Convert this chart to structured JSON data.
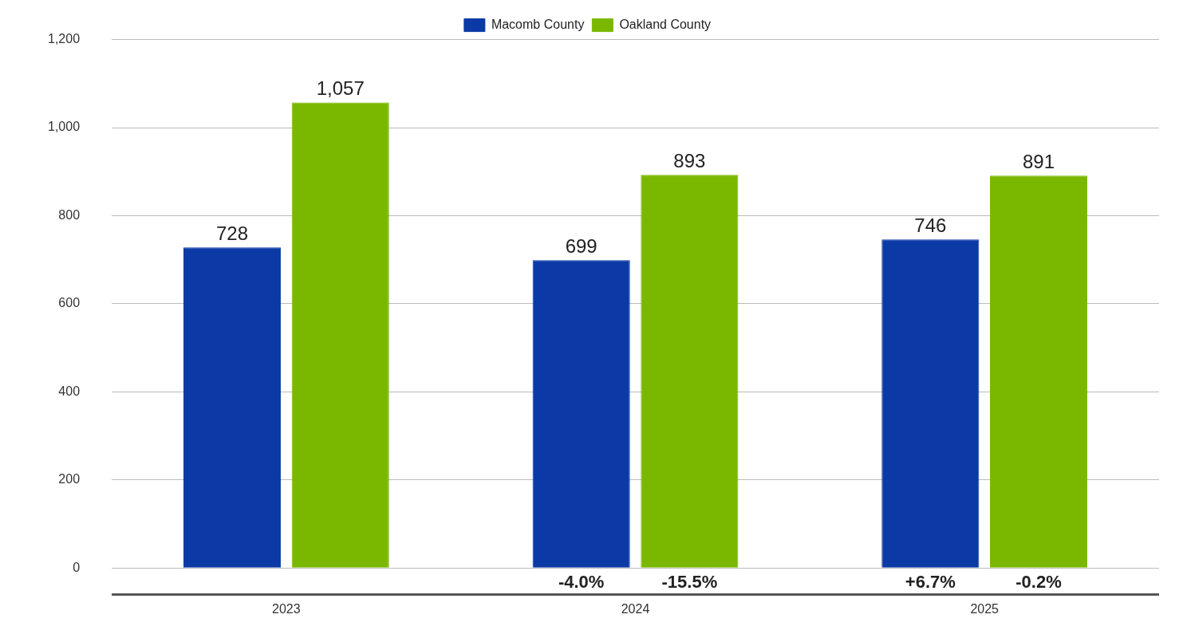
{
  "chart_data": {
    "type": "bar",
    "categories": [
      "2023",
      "2024",
      "2025"
    ],
    "series": [
      {
        "name": "Macomb County",
        "color": "#0b3aa6",
        "values": [
          728,
          699,
          746
        ],
        "value_labels": [
          "728",
          "699",
          "746"
        ]
      },
      {
        "name": "Oakland County",
        "color": "#7ab800",
        "values": [
          1057,
          893,
          891
        ],
        "value_labels": [
          "1,057",
          "893",
          "891"
        ]
      }
    ],
    "ylim": [
      -60,
      1200
    ],
    "yticks": [
      {
        "value": 0,
        "label": "0"
      },
      {
        "value": 200,
        "label": "200"
      },
      {
        "value": 400,
        "label": "400"
      },
      {
        "value": 600,
        "label": "600"
      },
      {
        "value": 800,
        "label": "800"
      },
      {
        "value": 1000,
        "label": "1,000"
      },
      {
        "value": 1200,
        "label": "1,200"
      }
    ],
    "grid": "y",
    "legend": "top",
    "annotations": [
      "-4.0%",
      "-15.5%",
      "+6.7%",
      "-0.2%"
    ]
  }
}
